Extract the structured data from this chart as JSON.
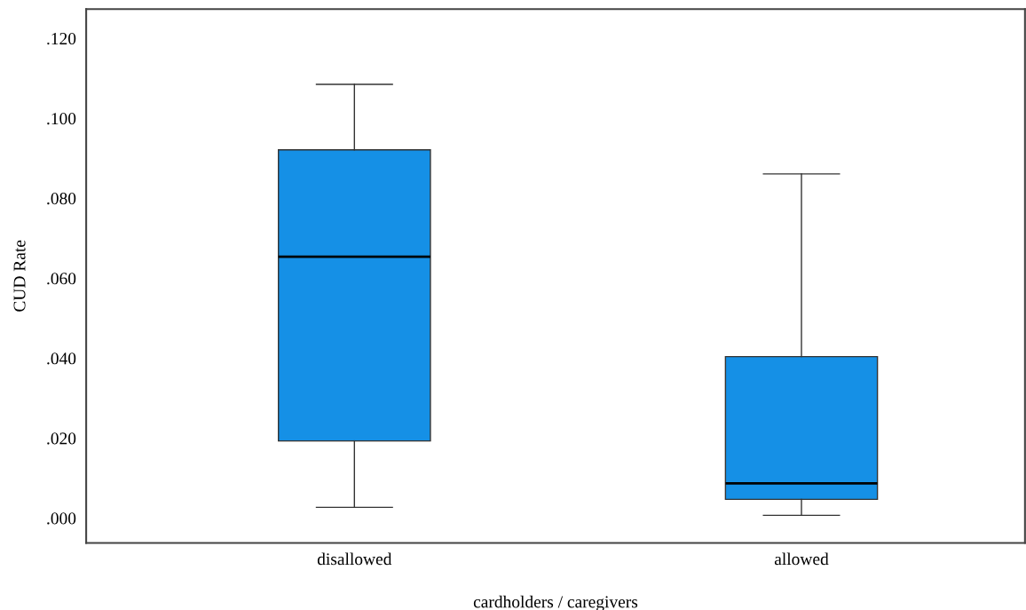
{
  "chart_data": {
    "type": "box",
    "xlabel": "cardholders / caregivers",
    "ylabel": "CUD Rate",
    "categories": [
      "disallowed",
      "allowed"
    ],
    "boxes": [
      {
        "low": 0.0027,
        "q1": 0.0193,
        "median": 0.0654,
        "q3": 0.0921,
        "high": 0.1085
      },
      {
        "low": 0.0007,
        "q1": 0.0047,
        "median": 0.0087,
        "q3": 0.0404,
        "high": 0.0861
      }
    ],
    "color": "#1590e6",
    "ylim": [
      -0.0062,
      0.1273
    ],
    "yticks": [
      {
        "value": 0.0,
        "label": ".000"
      },
      {
        "value": 0.02,
        "label": ".020"
      },
      {
        "value": 0.04,
        "label": ".040"
      },
      {
        "value": 0.06,
        "label": ".060"
      },
      {
        "value": 0.08,
        "label": ".080"
      },
      {
        "value": 0.1,
        "label": ".100"
      },
      {
        "value": 0.12,
        "label": ".120"
      }
    ],
    "grid": false
  }
}
